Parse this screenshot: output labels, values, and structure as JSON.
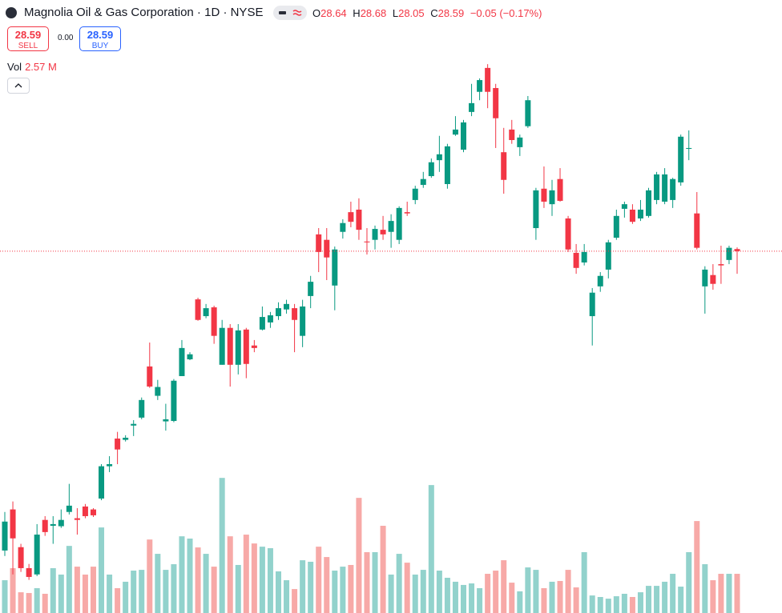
{
  "header": {
    "title": "Magnolia Oil & Gas Corporation · 1D · NYSE",
    "ohlc_prefixes": [
      "O",
      "H",
      "L",
      "C"
    ],
    "change": "−0.05 (−0.17%)",
    "sell_price": "28.59",
    "sell_label": "SELL",
    "spread": "0.00",
    "buy_price": "28.59",
    "buy_label": "BUY",
    "volume_label": "Vol",
    "volume_value": "2.57 M"
  },
  "chart_data": {
    "type": "candlestick",
    "open": [
      21.45,
      22.43,
      21.53,
      21.03,
      20.88,
      22.18,
      22.04,
      22.03,
      22.37,
      22.22,
      22.5,
      22.43,
      22.69,
      23.46,
      24.12,
      24.09,
      24.43,
      24.62,
      25.84,
      25.14,
      24.53,
      24.54,
      25.61,
      26.01,
      27.44,
      27.04,
      27.25,
      25.88,
      26.76,
      25.88,
      26.72,
      26.34,
      26.72,
      26.89,
      27.04,
      27.2,
      27.23,
      26.57,
      27.52,
      28.99,
      28.86,
      27.77,
      29.05,
      29.52,
      29.58,
      28.82,
      28.86,
      29.1,
      29.05,
      28.86,
      29.52,
      29.81,
      30.17,
      30.38,
      30.76,
      30.19,
      31.37,
      31.01,
      31.91,
      32.39,
      32.96,
      32.48,
      30.95,
      31.49,
      31.07,
      31.57,
      29.14,
      30.08,
      29.71,
      30.31,
      29.37,
      28.55,
      28.32,
      27.04,
      27.75,
      28.15,
      28.91,
      29.6,
      29.58,
      29.37,
      29.43,
      29.81,
      29.77,
      29.81,
      30.23,
      31.03,
      29.49,
      27.75,
      28.02,
      28.28,
      28.38,
      28.64
    ],
    "high": [
      22.37,
      22.62,
      21.61,
      21.13,
      22.08,
      22.27,
      22.27,
      22.43,
      23.04,
      22.46,
      22.56,
      22.46,
      23.51,
      23.7,
      24.28,
      24.2,
      24.56,
      25.1,
      26.41,
      25.52,
      24.95,
      25.54,
      26.47,
      26.18,
      27.48,
      27.33,
      27.29,
      26.95,
      26.85,
      26.85,
      26.76,
      26.47,
      27.27,
      27.14,
      27.37,
      27.43,
      27.33,
      27.43,
      28.0,
      29.14,
      29.14,
      28.7,
      29.35,
      29.77,
      29.85,
      29.14,
      29.2,
      29.43,
      29.47,
      29.66,
      29.77,
      30.15,
      30.48,
      30.8,
      31.34,
      31.15,
      31.81,
      31.72,
      32.58,
      32.71,
      33.05,
      32.58,
      31.53,
      31.72,
      31.37,
      32.29,
      30.1,
      30.61,
      30.29,
      30.57,
      29.43,
      28.76,
      28.76,
      27.71,
      28.09,
      28.86,
      29.58,
      29.77,
      29.71,
      29.81,
      30.1,
      30.48,
      30.57,
      30.34,
      31.37,
      31.47,
      30.0,
      28.23,
      28.28,
      28.72,
      28.72,
      28.68
    ],
    "low": [
      21.32,
      20.88,
      20.94,
      20.75,
      20.84,
      21.8,
      21.61,
      21.99,
      22.31,
      21.83,
      22.22,
      22.25,
      22.65,
      23.32,
      23.51,
      24.05,
      24.18,
      24.58,
      25.33,
      25.04,
      24.31,
      24.51,
      25.61,
      25.99,
      26.93,
      26.99,
      26.38,
      25.88,
      25.36,
      25.65,
      25.56,
      26.18,
      26.7,
      26.76,
      26.95,
      27.1,
      26.18,
      26.3,
      27.23,
      28.09,
      27.9,
      27.18,
      28.89,
      29.16,
      28.86,
      28.51,
      28.63,
      28.86,
      28.67,
      28.76,
      29.43,
      29.71,
      30.1,
      30.34,
      30.48,
      30.08,
      31.34,
      30.95,
      31.81,
      32.19,
      32.0,
      31.05,
      29.96,
      31.15,
      30.86,
      31.53,
      28.86,
      29.62,
      29.43,
      29.77,
      28.57,
      28.05,
      28.25,
      26.34,
      27.62,
      27.94,
      28.86,
      29.39,
      29.24,
      29.31,
      29.39,
      29.71,
      29.71,
      29.62,
      30.15,
      30.76,
      28.63,
      27.1,
      27.67,
      27.81,
      28.28,
      28.05
    ],
    "close": [
      22.14,
      21.74,
      21.03,
      20.82,
      21.83,
      21.89,
      22.08,
      22.18,
      22.52,
      22.18,
      22.27,
      22.29,
      23.46,
      23.51,
      23.86,
      24.14,
      24.47,
      25.04,
      25.36,
      25.35,
      24.58,
      25.5,
      26.28,
      26.13,
      26.95,
      27.23,
      26.57,
      26.76,
      25.88,
      26.7,
      25.9,
      26.28,
      27.02,
      27.06,
      27.23,
      27.33,
      26.95,
      27.27,
      27.86,
      28.57,
      28.44,
      28.63,
      29.26,
      29.29,
      29.1,
      28.8,
      29.12,
      28.99,
      29.31,
      29.62,
      29.49,
      30.08,
      30.31,
      30.71,
      30.9,
      31.09,
      31.49,
      31.66,
      32.12,
      32.67,
      32.39,
      31.76,
      30.29,
      31.24,
      31.3,
      32.19,
      30.04,
      29.77,
      30.04,
      29.79,
      28.63,
      28.19,
      28.57,
      27.6,
      28.0,
      28.8,
      29.43,
      29.71,
      29.29,
      29.58,
      30.04,
      30.42,
      30.42,
      30.31,
      31.32,
      31.05,
      28.67,
      28.15,
      27.81,
      28.25,
      28.67,
      28.59
    ],
    "volume": [
      2.15,
      2.94,
      1.36,
      1.31,
      1.63,
      1.26,
      2.94,
      2.52,
      4.4,
      3.04,
      2.52,
      3.04,
      5.61,
      2.52,
      1.63,
      2.05,
      2.78,
      2.83,
      4.82,
      3.88,
      2.83,
      3.2,
      5.03,
      4.88,
      4.3,
      3.88,
      3.04,
      8.86,
      5.03,
      3.15,
      5.14,
      4.56,
      4.35,
      4.25,
      2.73,
      2.15,
      1.57,
      3.46,
      3.36,
      4.35,
      3.67,
      2.78,
      3.04,
      3.15,
      7.55,
      3.99,
      3.99,
      5.72,
      2.52,
      3.88,
      3.3,
      2.52,
      2.83,
      8.39,
      2.78,
      2.31,
      2.05,
      1.84,
      1.94,
      1.63,
      2.57,
      2.78,
      3.46,
      1.99,
      1.42,
      2.99,
      2.83,
      1.63,
      2.05,
      2.1,
      2.83,
      1.68,
      3.99,
      1.15,
      1.05,
      0.94,
      1.1,
      1.26,
      1.05,
      1.36,
      1.78,
      1.78,
      2.05,
      2.57,
      1.73,
      3.99,
      6.03,
      3.2,
      2.15,
      2.57,
      2.57,
      2.57
    ],
    "ylim": [
      19.96,
      34.58
    ],
    "y2lim": [
      0,
      40.2
    ],
    "up_color": "#089981",
    "down_color": "#f23645",
    "up_volume_color": "#92d2cc",
    "down_volume_color": "#f7a9a7",
    "last_price_line": true
  }
}
